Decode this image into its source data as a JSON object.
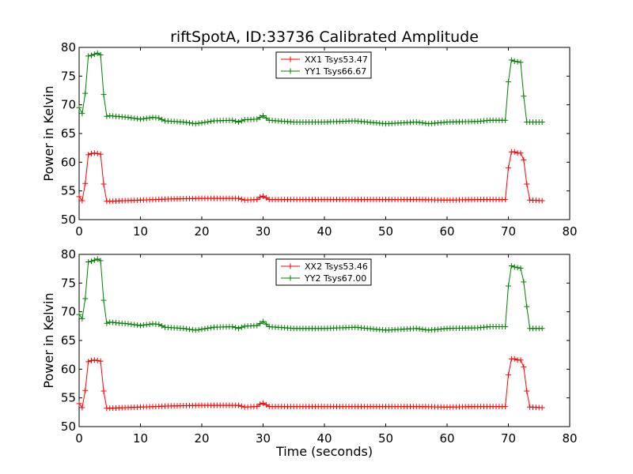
{
  "figure": {
    "title": "riftSpotA, ID:33736 Calibrated Amplitude",
    "xlabel": "Time (seconds)"
  },
  "chart_data": [
    {
      "type": "line",
      "title": "riftSpotA, ID:33736 Calibrated Amplitude",
      "xlabel": "",
      "ylabel": "Power in Kelvin",
      "xlim": [
        0,
        80
      ],
      "ylim": [
        50,
        80
      ],
      "xticks": [
        0,
        10,
        20,
        30,
        40,
        50,
        60,
        70,
        80
      ],
      "yticks": [
        50,
        55,
        60,
        65,
        70,
        75,
        80
      ],
      "grid": false,
      "legend_position": "top-center",
      "marker": "+",
      "sample_interval": 0.5,
      "series": [
        {
          "name": "XX1 Tsys53.47",
          "color": "#ff0000",
          "points": [
            [
              0.0,
              54.0
            ],
            [
              0.5,
              53.3
            ],
            [
              1.0,
              56.3
            ],
            [
              1.5,
              61.3
            ],
            [
              2.0,
              61.5
            ],
            [
              2.5,
              61.6
            ],
            [
              3.0,
              61.5
            ],
            [
              3.5,
              61.4
            ],
            [
              4.0,
              56.2
            ],
            [
              4.5,
              53.2
            ],
            [
              5.0,
              53.2
            ],
            [
              15.0,
              53.6
            ],
            [
              20.0,
              53.7
            ],
            [
              26.0,
              53.7
            ],
            [
              27.0,
              53.4
            ],
            [
              29.0,
              53.5
            ],
            [
              29.5,
              53.9
            ],
            [
              30.0,
              54.1
            ],
            [
              30.5,
              53.8
            ],
            [
              31.0,
              53.5
            ],
            [
              35.0,
              53.5
            ],
            [
              40.0,
              53.5
            ],
            [
              45.0,
              53.5
            ],
            [
              50.0,
              53.5
            ],
            [
              55.0,
              53.5
            ],
            [
              60.0,
              53.4
            ],
            [
              65.0,
              53.5
            ],
            [
              69.5,
              53.5
            ],
            [
              70.0,
              59.0
            ],
            [
              70.5,
              61.8
            ],
            [
              71.0,
              61.8
            ],
            [
              71.5,
              61.6
            ],
            [
              72.0,
              61.6
            ],
            [
              72.5,
              60.4
            ],
            [
              73.0,
              56.2
            ],
            [
              73.5,
              53.4
            ],
            [
              75.5,
              53.3
            ]
          ]
        },
        {
          "name": "YY1 Tsys66.67",
          "color": "#008000",
          "points": [
            [
              0.0,
              69.5
            ],
            [
              0.5,
              68.5
            ],
            [
              1.0,
              72.0
            ],
            [
              1.5,
              78.5
            ],
            [
              2.0,
              78.6
            ],
            [
              2.5,
              78.8
            ],
            [
              3.0,
              79.0
            ],
            [
              3.5,
              78.7
            ],
            [
              4.0,
              71.8
            ],
            [
              4.5,
              68.0
            ],
            [
              5.0,
              68.1
            ],
            [
              8.0,
              67.8
            ],
            [
              10.0,
              67.5
            ],
            [
              12.0,
              67.8
            ],
            [
              13.0,
              67.7
            ],
            [
              14.0,
              67.2
            ],
            [
              17.0,
              67.0
            ],
            [
              19.0,
              66.7
            ],
            [
              22.0,
              67.2
            ],
            [
              25.0,
              67.3
            ],
            [
              26.0,
              67.0
            ],
            [
              27.0,
              67.4
            ],
            [
              29.0,
              67.5
            ],
            [
              30.0,
              68.1
            ],
            [
              31.0,
              67.3
            ],
            [
              35.0,
              67.0
            ],
            [
              40.0,
              67.0
            ],
            [
              45.0,
              67.2
            ],
            [
              50.0,
              66.7
            ],
            [
              55.0,
              67.0
            ],
            [
              57.0,
              66.7
            ],
            [
              60.0,
              67.0
            ],
            [
              65.0,
              67.1
            ],
            [
              67.0,
              67.3
            ],
            [
              69.5,
              67.3
            ],
            [
              70.0,
              74.0
            ],
            [
              70.5,
              77.8
            ],
            [
              71.0,
              77.6
            ],
            [
              71.5,
              77.5
            ],
            [
              72.0,
              77.4
            ],
            [
              72.5,
              71.5
            ],
            [
              73.0,
              67.0
            ],
            [
              75.5,
              67.0
            ]
          ]
        }
      ]
    },
    {
      "type": "line",
      "title": "",
      "xlabel": "Time (seconds)",
      "ylabel": "Power in Kelvin",
      "xlim": [
        0,
        80
      ],
      "ylim": [
        50,
        80
      ],
      "xticks": [
        0,
        10,
        20,
        30,
        40,
        50,
        60,
        70,
        80
      ],
      "yticks": [
        50,
        55,
        60,
        65,
        70,
        75,
        80
      ],
      "grid": false,
      "legend_position": "top-center",
      "marker": "+",
      "sample_interval": 0.5,
      "series": [
        {
          "name": "XX2 Tsys53.46",
          "color": "#ff0000",
          "points": [
            [
              0.0,
              54.0
            ],
            [
              0.5,
              53.3
            ],
            [
              1.0,
              56.3
            ],
            [
              1.5,
              61.3
            ],
            [
              2.0,
              61.5
            ],
            [
              2.5,
              61.6
            ],
            [
              3.0,
              61.5
            ],
            [
              3.5,
              61.4
            ],
            [
              4.0,
              56.2
            ],
            [
              4.5,
              53.2
            ],
            [
              5.0,
              53.2
            ],
            [
              15.0,
              53.6
            ],
            [
              20.0,
              53.7
            ],
            [
              26.0,
              53.7
            ],
            [
              27.0,
              53.4
            ],
            [
              29.0,
              53.5
            ],
            [
              29.5,
              53.9
            ],
            [
              30.0,
              54.1
            ],
            [
              30.5,
              53.8
            ],
            [
              31.0,
              53.5
            ],
            [
              35.0,
              53.5
            ],
            [
              40.0,
              53.5
            ],
            [
              45.0,
              53.5
            ],
            [
              50.0,
              53.5
            ],
            [
              55.0,
              53.5
            ],
            [
              60.0,
              53.4
            ],
            [
              65.0,
              53.5
            ],
            [
              69.5,
              53.5
            ],
            [
              70.0,
              59.0
            ],
            [
              70.5,
              61.8
            ],
            [
              71.0,
              61.8
            ],
            [
              71.5,
              61.6
            ],
            [
              72.0,
              61.6
            ],
            [
              72.5,
              60.4
            ],
            [
              73.0,
              56.2
            ],
            [
              73.5,
              53.4
            ],
            [
              75.5,
              53.3
            ]
          ]
        },
        {
          "name": "YY2 Tsys67.00",
          "color": "#008000",
          "points": [
            [
              0.0,
              69.5
            ],
            [
              0.5,
              68.8
            ],
            [
              1.0,
              72.3
            ],
            [
              1.5,
              78.7
            ],
            [
              2.0,
              78.8
            ],
            [
              2.5,
              79.0
            ],
            [
              3.0,
              79.2
            ],
            [
              3.5,
              78.9
            ],
            [
              4.0,
              72.0
            ],
            [
              4.5,
              68.0
            ],
            [
              5.0,
              68.2
            ],
            [
              8.0,
              67.9
            ],
            [
              10.0,
              67.6
            ],
            [
              12.0,
              67.9
            ],
            [
              13.0,
              67.8
            ],
            [
              14.0,
              67.3
            ],
            [
              17.0,
              67.1
            ],
            [
              19.0,
              66.8
            ],
            [
              22.0,
              67.3
            ],
            [
              25.0,
              67.4
            ],
            [
              26.0,
              67.1
            ],
            [
              27.0,
              67.5
            ],
            [
              29.0,
              67.6
            ],
            [
              30.0,
              68.3
            ],
            [
              31.0,
              67.4
            ],
            [
              35.0,
              67.1
            ],
            [
              40.0,
              67.1
            ],
            [
              45.0,
              67.3
            ],
            [
              50.0,
              66.8
            ],
            [
              55.0,
              67.1
            ],
            [
              57.0,
              66.8
            ],
            [
              60.0,
              67.1
            ],
            [
              65.0,
              67.2
            ],
            [
              67.0,
              67.4
            ],
            [
              69.5,
              67.4
            ],
            [
              70.0,
              74.5
            ],
            [
              70.5,
              78.0
            ],
            [
              71.0,
              77.8
            ],
            [
              71.5,
              77.7
            ],
            [
              72.0,
              77.6
            ],
            [
              72.5,
              75.2
            ],
            [
              73.0,
              70.9
            ],
            [
              73.5,
              67.1
            ],
            [
              75.5,
              67.1
            ]
          ]
        }
      ]
    }
  ]
}
